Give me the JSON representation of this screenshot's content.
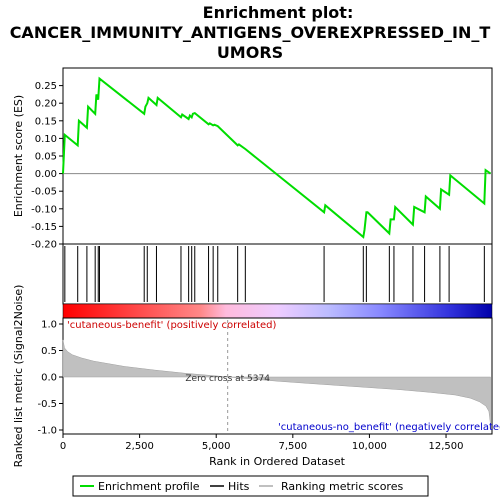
{
  "chart_data": {
    "type": "line",
    "title_lines": [
      "Enrichment plot:",
      "CANCER_IMMUNITY_ANTIGENS_OVEREXPRESSED_IN_T",
      "UMORS"
    ],
    "xlabel": "Rank in Ordered Dataset",
    "es_panel": {
      "ylabel": "Enrichment score (ES)",
      "ylim": [
        -0.2,
        0.3
      ],
      "yticks": [
        0.25,
        0.2,
        0.15,
        0.1,
        0.05,
        0.0,
        -0.05,
        -0.1,
        -0.15,
        -0.2
      ],
      "ytick_labels": [
        "0.25",
        "0.20",
        "0.15",
        "0.10",
        "0.05",
        "0.00",
        "-0.05",
        "-0.10",
        "-0.15",
        "-0.20"
      ],
      "series": [
        {
          "name": "Enrichment profile",
          "color": "#00dd00",
          "x": [
            0,
            60,
            480,
            520,
            780,
            820,
            1050,
            1090,
            1150,
            1190,
            2650,
            2690,
            2750,
            2790,
            3050,
            3090,
            3850,
            3890,
            4100,
            4140,
            4200,
            4240,
            4300,
            4750,
            4790,
            4900,
            4940,
            5050,
            5700,
            5740,
            5950,
            8520,
            8560,
            9800,
            9840,
            9900,
            9940,
            10650,
            10690,
            10800,
            10840,
            11420,
            11460,
            11800,
            11840,
            12300,
            12340,
            12600,
            12640,
            13750,
            13790,
            13950
          ],
          "y": [
            0.0,
            0.11,
            0.08,
            0.15,
            0.13,
            0.19,
            0.17,
            0.225,
            0.21,
            0.27,
            0.17,
            0.19,
            0.2,
            0.215,
            0.195,
            0.215,
            0.16,
            0.168,
            0.155,
            0.165,
            0.16,
            0.17,
            0.172,
            0.14,
            0.143,
            0.137,
            0.139,
            0.135,
            0.08,
            0.083,
            0.07,
            -0.11,
            -0.09,
            -0.18,
            -0.16,
            -0.11,
            -0.11,
            -0.17,
            -0.13,
            -0.13,
            -0.095,
            -0.145,
            -0.095,
            -0.11,
            -0.065,
            -0.1,
            -0.045,
            -0.06,
            -0.005,
            -0.085,
            0.01,
            0.0
          ]
        }
      ],
      "hits": [
        60,
        480,
        780,
        1050,
        1150,
        1190,
        2650,
        2750,
        3050,
        3850,
        4100,
        4200,
        4300,
        4750,
        4900,
        5050,
        5700,
        5950,
        8520,
        9800,
        9900,
        10650,
        10800,
        11420,
        11800,
        12300,
        12600,
        13750
      ]
    },
    "metric_panel": {
      "ylabel": "Ranked list metric (Signal2Noise)",
      "ylim": [
        -1.0,
        1.0
      ],
      "yticks": [
        1.0,
        0.5,
        0.0,
        -0.5,
        -1.0
      ],
      "ytick_labels": [
        "1.0",
        "0.5",
        "0.0",
        "-0.5",
        "-1.0"
      ],
      "metric_x": [
        0,
        50,
        150,
        300,
        600,
        1000,
        2000,
        3000,
        4000,
        5000,
        5374,
        6000,
        7000,
        8000,
        9000,
        10000,
        11000,
        12000,
        12800,
        13300,
        13600,
        13800,
        13900,
        13950
      ],
      "metric_y": [
        0.7,
        0.55,
        0.48,
        0.42,
        0.36,
        0.3,
        0.2,
        0.13,
        0.07,
        0.02,
        0.0,
        -0.03,
        -0.08,
        -0.12,
        -0.16,
        -0.2,
        -0.24,
        -0.29,
        -0.34,
        -0.4,
        -0.47,
        -0.55,
        -0.65,
        -0.9
      ],
      "zero_cross_label": "Zero cross at 5374",
      "zero_cross_x": 5374,
      "positive_label": "'cutaneous-benefit' (positively correlated)",
      "negative_label": "'cutaneous-no_benefit' (negatively correlated)"
    },
    "xlim": [
      0,
      14000
    ],
    "xticks": [
      0,
      2500,
      5000,
      7500,
      10000,
      12500
    ],
    "xtick_labels": [
      "0",
      "2,500",
      "5,000",
      "7,500",
      "10,000",
      "12,500"
    ],
    "legend": {
      "placement": "bottom",
      "entries": [
        "Enrichment profile",
        "Hits",
        "Ranking metric scores"
      ]
    }
  }
}
